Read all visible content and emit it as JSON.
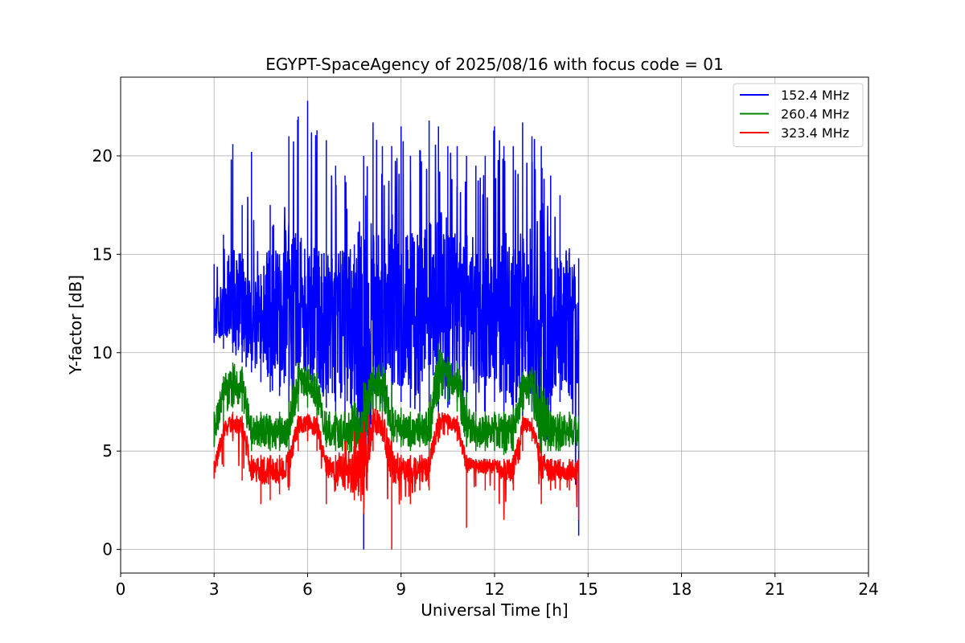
{
  "chart_data": {
    "type": "line",
    "title": "EGYPT-SpaceAgency of 2025/08/16 with focus code = 01",
    "xlabel": "Universal Time [h]",
    "ylabel": "Y-factor [dB]",
    "xlim": [
      0,
      24
    ],
    "ylim": [
      -1.2,
      24
    ],
    "xticks": [
      0,
      3,
      6,
      9,
      12,
      15,
      18,
      21,
      24
    ],
    "yticks": [
      0,
      5,
      10,
      15,
      20
    ],
    "grid": true,
    "legend_position": "top-right",
    "series": [
      {
        "name": "152.4 MHz",
        "color": "#0000ff",
        "x": [
          3.0,
          3.3,
          3.6,
          3.9,
          4.2,
          4.5,
          4.8,
          5.1,
          5.4,
          5.7,
          6.0,
          6.3,
          6.6,
          6.9,
          7.2,
          7.5,
          7.8,
          8.1,
          8.4,
          8.7,
          9.0,
          9.3,
          9.6,
          9.9,
          10.2,
          10.5,
          10.8,
          11.1,
          11.4,
          11.7,
          12.0,
          12.3,
          12.6,
          12.9,
          13.2,
          13.5,
          13.8,
          14.1,
          14.4,
          14.7
        ],
        "y_min": [
          10.5,
          10.2,
          10.0,
          9.5,
          9.0,
          8.5,
          8.0,
          7.8,
          7.5,
          8.0,
          8.2,
          7.5,
          7.2,
          7.0,
          6.5,
          6.2,
          0.0,
          7.0,
          7.2,
          7.0,
          7.5,
          7.2,
          7.0,
          7.5,
          7.0,
          7.2,
          7.5,
          7.2,
          7.0,
          7.0,
          7.5,
          7.0,
          6.5,
          6.8,
          7.0,
          3.0,
          6.8,
          7.5,
          7.8,
          0.7
        ],
        "y_max": [
          14.5,
          16.0,
          20.6,
          17.5,
          20.2,
          14.0,
          17.5,
          15.0,
          21.0,
          22.0,
          22.8,
          21.3,
          20.8,
          19.5,
          19.0,
          15.5,
          20.0,
          21.7,
          20.5,
          20.5,
          21.5,
          20.0,
          20.3,
          21.8,
          21.5,
          20.5,
          20.5,
          20.0,
          19.5,
          20.0,
          21.5,
          20.5,
          20.5,
          21.7,
          21.0,
          20.5,
          19.0,
          18.0,
          15.3,
          14.8
        ],
        "y_typ": [
          12.0,
          12.5,
          13.0,
          12.5,
          11.5,
          11.5,
          12.0,
          12.0,
          12.5,
          12.5,
          12.0,
          12.0,
          11.5,
          11.5,
          11.5,
          11.0,
          10.5,
          12.0,
          12.0,
          12.5,
          12.5,
          12.0,
          12.0,
          12.5,
          12.5,
          12.5,
          12.0,
          12.0,
          12.0,
          11.5,
          12.0,
          12.0,
          11.5,
          12.0,
          12.0,
          11.5,
          11.5,
          11.5,
          11.5,
          11.0
        ]
      },
      {
        "name": "260.4 MHz",
        "color": "#008000",
        "x": [
          3.0,
          3.3,
          3.6,
          3.9,
          4.2,
          4.5,
          4.8,
          5.1,
          5.4,
          5.7,
          6.0,
          6.3,
          6.6,
          6.9,
          7.2,
          7.5,
          7.8,
          8.1,
          8.4,
          8.7,
          9.0,
          9.3,
          9.6,
          9.9,
          10.2,
          10.5,
          10.8,
          11.1,
          11.4,
          11.7,
          12.0,
          12.3,
          12.6,
          12.9,
          13.2,
          13.5,
          13.8,
          14.1,
          14.4,
          14.7
        ],
        "y_min": [
          5.2,
          6.5,
          7.2,
          7.0,
          5.0,
          5.2,
          5.0,
          5.0,
          5.0,
          7.0,
          7.2,
          6.8,
          5.2,
          5.0,
          5.0,
          4.5,
          4.2,
          7.0,
          7.0,
          5.5,
          5.2,
          5.0,
          5.2,
          5.0,
          7.5,
          7.5,
          7.0,
          5.2,
          5.0,
          5.0,
          5.0,
          4.8,
          5.0,
          7.0,
          7.0,
          4.5,
          5.0,
          5.0,
          5.2,
          5.0
        ],
        "y_max": [
          7.0,
          8.8,
          9.5,
          9.3,
          6.8,
          7.0,
          6.8,
          7.0,
          7.5,
          9.5,
          9.3,
          9.0,
          7.0,
          7.0,
          7.0,
          7.5,
          8.5,
          9.3,
          9.5,
          8.5,
          7.2,
          7.0,
          7.0,
          7.5,
          10.5,
          9.8,
          9.5,
          8.0,
          7.0,
          7.0,
          7.0,
          7.0,
          7.2,
          9.0,
          9.3,
          9.8,
          7.0,
          7.0,
          7.0,
          6.8
        ],
        "y_typ": [
          6.0,
          8.0,
          8.3,
          8.3,
          6.0,
          6.0,
          6.0,
          6.0,
          6.2,
          8.5,
          8.5,
          8.0,
          6.0,
          6.0,
          6.0,
          6.0,
          6.0,
          8.5,
          8.5,
          6.5,
          6.0,
          6.0,
          6.0,
          6.2,
          9.0,
          8.8,
          8.5,
          6.3,
          6.0,
          6.0,
          6.0,
          6.0,
          6.0,
          8.2,
          8.5,
          6.5,
          6.0,
          6.0,
          6.0,
          6.0
        ]
      },
      {
        "name": "323.4 MHz",
        "color": "#ff0000",
        "x": [
          3.0,
          3.3,
          3.6,
          3.9,
          4.2,
          4.5,
          4.8,
          5.1,
          5.4,
          5.7,
          6.0,
          6.3,
          6.6,
          6.9,
          7.2,
          7.5,
          7.8,
          8.1,
          8.4,
          8.7,
          9.0,
          9.3,
          9.6,
          9.9,
          10.2,
          10.5,
          10.8,
          11.1,
          11.4,
          11.7,
          12.0,
          12.3,
          12.6,
          12.9,
          13.2,
          13.5,
          13.8,
          14.1,
          14.4,
          14.7
        ],
        "y_min": [
          3.6,
          4.2,
          5.5,
          3.5,
          3.5,
          2.3,
          2.5,
          2.8,
          3.0,
          5.0,
          5.5,
          5.0,
          2.3,
          3.0,
          3.0,
          2.5,
          1.8,
          5.0,
          5.5,
          0.0,
          2.5,
          2.3,
          3.0,
          3.0,
          5.5,
          5.8,
          5.5,
          1.1,
          3.2,
          3.0,
          3.0,
          1.5,
          3.0,
          5.0,
          5.5,
          2.3,
          3.0,
          3.0,
          3.0,
          1.5
        ],
        "y_max": [
          4.5,
          6.5,
          7.0,
          6.8,
          4.8,
          4.8,
          4.8,
          4.8,
          5.0,
          6.8,
          6.9,
          6.8,
          4.8,
          4.8,
          5.5,
          6.0,
          6.5,
          7.2,
          7.0,
          5.5,
          4.8,
          4.8,
          4.8,
          5.0,
          7.0,
          6.9,
          6.8,
          4.8,
          4.6,
          4.6,
          4.6,
          4.6,
          4.8,
          6.8,
          6.7,
          5.0,
          4.6,
          4.6,
          4.6,
          4.6
        ],
        "y_typ": [
          4.0,
          6.0,
          6.5,
          6.2,
          4.1,
          4.0,
          4.0,
          4.0,
          4.2,
          6.3,
          6.4,
          6.2,
          4.2,
          4.0,
          4.0,
          4.0,
          4.0,
          6.5,
          6.3,
          4.3,
          4.0,
          4.0,
          4.0,
          4.2,
          6.5,
          6.5,
          6.3,
          4.3,
          4.2,
          4.2,
          4.2,
          4.0,
          4.0,
          6.3,
          6.3,
          4.2,
          4.0,
          4.0,
          4.0,
          4.0
        ]
      }
    ]
  }
}
